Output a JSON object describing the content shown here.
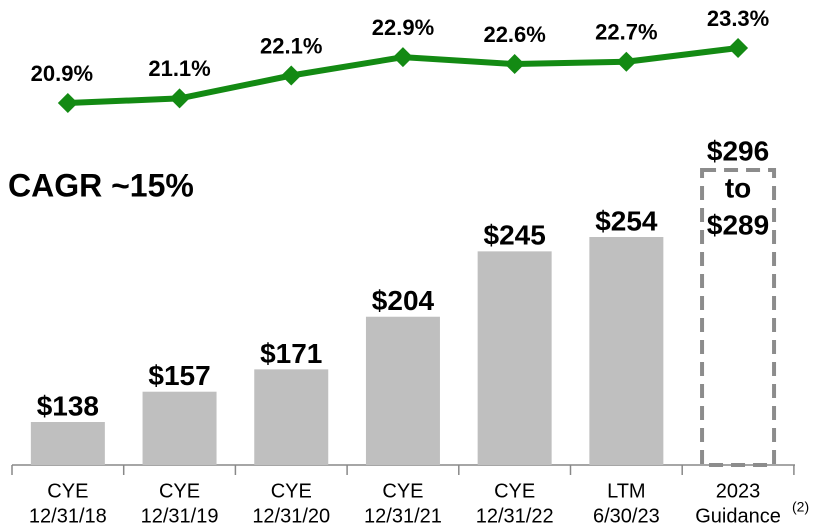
{
  "chart_data": {
    "type": "bar_line",
    "annotation": "CAGR ~15%",
    "categories": [
      [
        "CYE",
        "12/31/18"
      ],
      [
        "CYE",
        "12/31/19"
      ],
      [
        "CYE",
        "12/31/20"
      ],
      [
        "CYE",
        "12/31/21"
      ],
      [
        "CYE",
        "12/31/22"
      ],
      [
        "LTM",
        "6/30/23"
      ],
      [
        "2023",
        "Guidance"
      ]
    ],
    "footnote_marker": "(2)",
    "bars": {
      "color": "#bfbfbf",
      "values": [
        138,
        157,
        171,
        204,
        245,
        254,
        null
      ],
      "value_labels": [
        "$138",
        "$157",
        "$171",
        "$204",
        "$245",
        "$254",
        null
      ]
    },
    "guidance": {
      "high": 296,
      "low": 289,
      "labels": [
        "$296",
        "to",
        "$289"
      ],
      "color": "#8c8c8c"
    },
    "line": {
      "color": "#138a13",
      "values": [
        20.9,
        21.1,
        22.1,
        22.9,
        22.6,
        22.7,
        23.3
      ],
      "value_labels": [
        "20.9%",
        "21.1%",
        "22.1%",
        "22.9%",
        "22.6%",
        "22.7%",
        "23.3%"
      ]
    }
  }
}
